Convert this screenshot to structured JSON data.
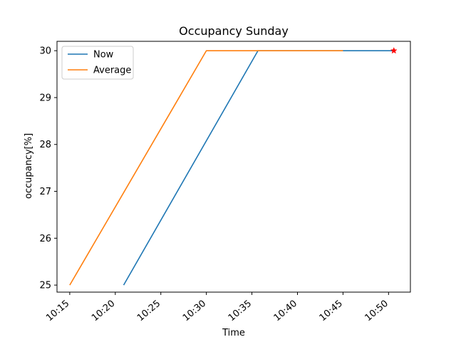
{
  "chart_data": {
    "type": "line",
    "title": "Occupancy Sunday",
    "xlabel": "Time",
    "ylabel": "occupancy[%]",
    "x_ticks": [
      "10:15",
      "10:20",
      "10:25",
      "10:30",
      "10:35",
      "10:40",
      "10:45",
      "10:50"
    ],
    "y_ticks": [
      "25",
      "26",
      "27",
      "28",
      "29",
      "30"
    ],
    "xlim": [
      "10:13:36",
      "10:52:24"
    ],
    "ylim": [
      24.85,
      30.2
    ],
    "grid": false,
    "legend_position": "top-left",
    "series": [
      {
        "name": "Now",
        "color": "#1f77b4",
        "x": [
          "10:20:55",
          "10:35:40",
          "10:50:35"
        ],
        "y": [
          25,
          30,
          30
        ]
      },
      {
        "name": "Average",
        "color": "#ff7f0e",
        "x": [
          "10:15:00",
          "10:30:00",
          "10:45:00"
        ],
        "y": [
          25,
          30,
          30
        ]
      }
    ],
    "annotations": [
      {
        "type": "marker",
        "marker": "star",
        "color": "#ff0000",
        "x": "10:50:35",
        "y": 30
      }
    ]
  }
}
